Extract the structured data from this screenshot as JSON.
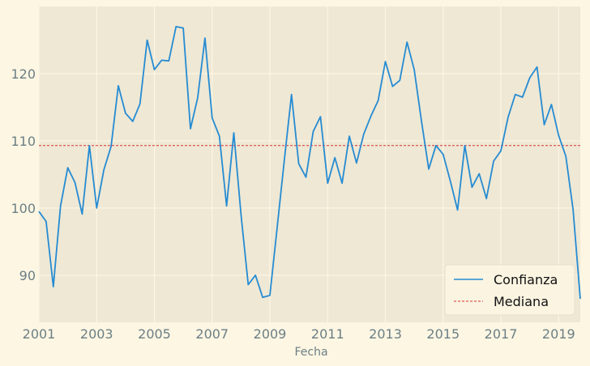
{
  "chart_data": {
    "type": "line",
    "xlabel": "Fecha",
    "ylabel": "",
    "xlim": [
      2001.0,
      2019.75
    ],
    "ylim": [
      83.0,
      130.0
    ],
    "xticks": [
      2001,
      2003,
      2005,
      2007,
      2009,
      2011,
      2013,
      2015,
      2017,
      2019
    ],
    "yticks": [
      90,
      100,
      110,
      120
    ],
    "grid": true,
    "legend_position": "bottom-right",
    "colors": {
      "background": "#fdf6e3",
      "plot_area": "#eee8d5",
      "grid": "#fdf6e3",
      "series": "#268bd2",
      "median": "#dc322f",
      "tick_text": "#6b7f85"
    },
    "series": [
      {
        "name": "Confianza",
        "style": "solid",
        "x": [
          2001.0,
          2001.25,
          2001.5,
          2001.75,
          2002.0,
          2002.25,
          2002.5,
          2002.75,
          2003.0,
          2003.25,
          2003.5,
          2003.75,
          2004.0,
          2004.25,
          2004.5,
          2004.75,
          2005.0,
          2005.25,
          2005.5,
          2005.75,
          2006.0,
          2006.25,
          2006.5,
          2006.75,
          2007.0,
          2007.25,
          2007.5,
          2007.75,
          2008.0,
          2008.25,
          2008.5,
          2008.75,
          2009.0,
          2009.25,
          2009.5,
          2009.75,
          2010.0,
          2010.25,
          2010.5,
          2010.75,
          2011.0,
          2011.25,
          2011.5,
          2011.75,
          2012.0,
          2012.25,
          2012.5,
          2012.75,
          2013.0,
          2013.25,
          2013.5,
          2013.75,
          2014.0,
          2014.25,
          2014.5,
          2014.75,
          2015.0,
          2015.25,
          2015.5,
          2015.75,
          2016.0,
          2016.25,
          2016.5,
          2016.75,
          2017.0,
          2017.25,
          2017.5,
          2017.75,
          2018.0,
          2018.25,
          2018.5,
          2018.75,
          2019.0,
          2019.25,
          2019.5,
          2019.75
        ],
        "y": [
          99.5,
          98.0,
          88.3,
          100.3,
          106.0,
          103.8,
          99.1,
          109.3,
          100.0,
          105.7,
          109.2,
          118.2,
          114.1,
          112.9,
          115.5,
          125.0,
          120.6,
          122.0,
          121.9,
          127.0,
          126.8,
          111.8,
          116.4,
          125.3,
          113.4,
          110.7,
          100.3,
          111.2,
          99.0,
          88.6,
          90.0,
          86.7,
          87.0,
          97.0,
          107.1,
          116.9,
          106.6,
          104.6,
          111.4,
          113.6,
          103.7,
          107.5,
          103.7,
          110.7,
          106.7,
          111.0,
          113.7,
          116.0,
          121.8,
          118.1,
          119.0,
          124.7,
          120.6,
          112.9,
          105.8,
          109.3,
          108.0,
          104.0,
          99.7,
          109.3,
          103.1,
          105.1,
          101.4,
          107.0,
          108.5,
          113.5,
          116.9,
          116.5,
          119.4,
          121.0,
          112.4,
          115.4,
          110.8,
          107.7,
          99.8,
          86.5
        ]
      },
      {
        "name": "Mediana",
        "style": "dashed",
        "value": 109.3
      }
    ]
  }
}
